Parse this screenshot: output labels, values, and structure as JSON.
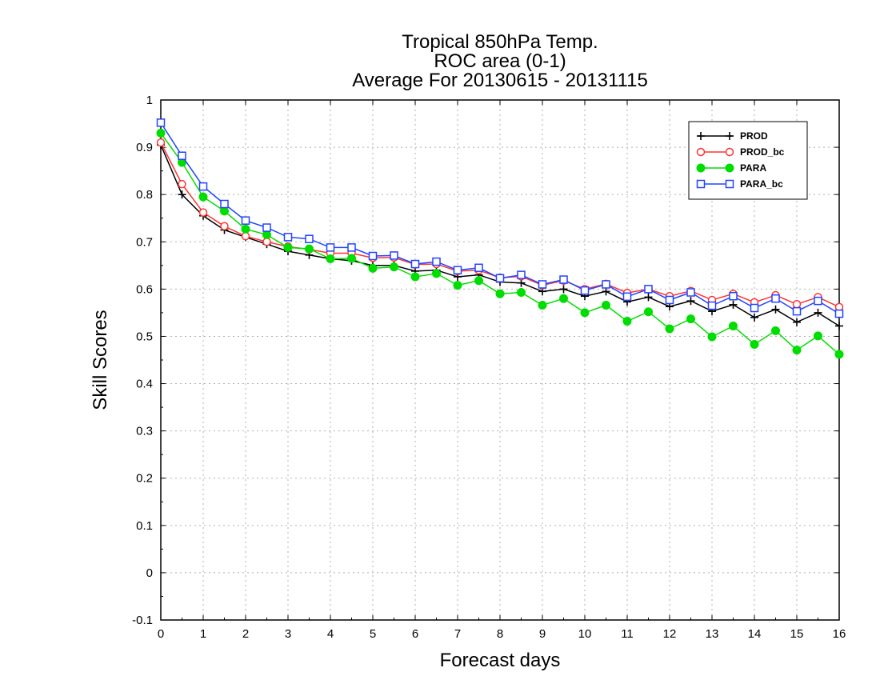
{
  "chart_data": {
    "type": "line",
    "title": [
      "Tropical 850hPa Temp.",
      "ROC area (0-1)",
      "Average For 20130615 - 20131115"
    ],
    "xlabel": "Forecast days",
    "ylabel": "Skill Scores",
    "xlim": [
      0,
      16
    ],
    "ylim": [
      -0.1,
      1
    ],
    "x_ticks": [
      "0",
      "1",
      "2",
      "3",
      "4",
      "5",
      "6",
      "7",
      "8",
      "9",
      "10",
      "11",
      "12",
      "13",
      "14",
      "15",
      "16"
    ],
    "y_ticks": [
      "1",
      "0.9",
      "0.8",
      "0.7",
      "0.6",
      "0.5",
      "0.4",
      "0.3",
      "0.2",
      "0.1",
      "0",
      "-0.1"
    ],
    "grid": true,
    "legend_position": "top-right",
    "x": [
      0,
      0.5,
      1,
      1.5,
      2,
      2.5,
      3,
      3.5,
      4,
      4.5,
      5,
      5.5,
      6,
      6.5,
      7,
      7.5,
      8,
      8.5,
      9,
      9.5,
      10,
      10.5,
      11,
      11.5,
      12,
      12.5,
      13,
      13.5,
      14,
      14.5,
      15,
      15.5,
      16
    ],
    "series": [
      {
        "name": "PROD",
        "color": "#000000",
        "marker": "plus",
        "values": [
          0.905,
          0.8,
          0.755,
          0.725,
          0.71,
          0.695,
          0.68,
          0.672,
          0.664,
          0.66,
          0.65,
          0.65,
          0.638,
          0.64,
          0.626,
          0.63,
          0.615,
          0.613,
          0.595,
          0.6,
          0.585,
          0.595,
          0.573,
          0.583,
          0.563,
          0.575,
          0.553,
          0.567,
          0.54,
          0.557,
          0.53,
          0.55,
          0.522
        ]
      },
      {
        "name": "PROD_bc",
        "color": "#ff3333",
        "marker": "open-circle",
        "values": [
          0.91,
          0.822,
          0.762,
          0.733,
          0.712,
          0.7,
          0.69,
          0.684,
          0.676,
          0.676,
          0.666,
          0.667,
          0.652,
          0.653,
          0.638,
          0.64,
          0.624,
          0.627,
          0.608,
          0.618,
          0.6,
          0.611,
          0.592,
          0.6,
          0.585,
          0.596,
          0.577,
          0.59,
          0.572,
          0.587,
          0.568,
          0.583,
          0.562
        ]
      },
      {
        "name": "PARA",
        "color": "#00dd00",
        "marker": "filled-circle",
        "values": [
          0.93,
          0.868,
          0.795,
          0.765,
          0.727,
          0.715,
          0.688,
          0.685,
          0.664,
          0.665,
          0.644,
          0.647,
          0.626,
          0.633,
          0.608,
          0.618,
          0.59,
          0.593,
          0.566,
          0.58,
          0.55,
          0.566,
          0.532,
          0.552,
          0.516,
          0.537,
          0.499,
          0.522,
          0.483,
          0.512,
          0.471,
          0.501,
          0.462
        ]
      },
      {
        "name": "PARA_bc",
        "color": "#2244ff",
        "marker": "open-square",
        "values": [
          0.952,
          0.882,
          0.817,
          0.78,
          0.745,
          0.73,
          0.71,
          0.706,
          0.688,
          0.688,
          0.67,
          0.671,
          0.653,
          0.658,
          0.64,
          0.645,
          0.623,
          0.63,
          0.61,
          0.62,
          0.597,
          0.61,
          0.584,
          0.6,
          0.577,
          0.593,
          0.565,
          0.585,
          0.56,
          0.58,
          0.553,
          0.575,
          0.548
        ]
      }
    ]
  }
}
